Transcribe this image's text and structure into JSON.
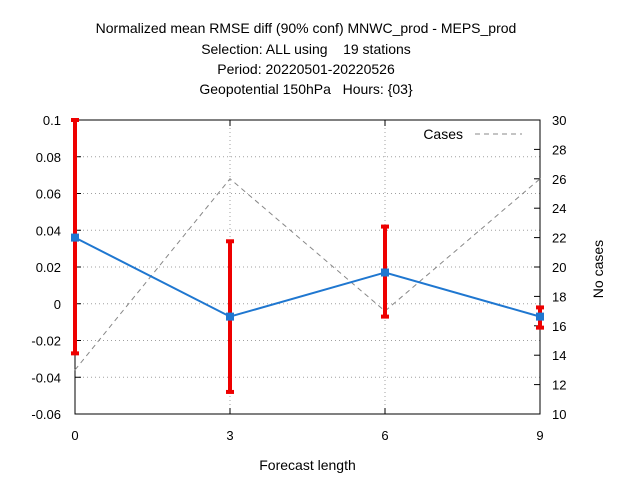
{
  "chart_data": {
    "type": "line",
    "title_lines": [
      "Normalized mean RMSE diff (90% conf) MNWC_prod - MEPS_prod",
      "Selection: ALL using    19 stations",
      "Period: 20220501-20220526",
      "Geopotential 150hPa   Hours: {03}"
    ],
    "xlabel": "Forecast length",
    "ylabel": "",
    "y2label": "No cases",
    "x": [
      0,
      3,
      6,
      9
    ],
    "xticks": [
      "0",
      "3",
      "6",
      "9"
    ],
    "xlim": [
      0,
      9
    ],
    "ylim": [
      -0.06,
      0.1
    ],
    "yticks": [
      "-0.06",
      "-0.04",
      "-0.02",
      "0",
      "0.02",
      "0.04",
      "0.06",
      "0.08",
      "0.1"
    ],
    "y2lim": [
      10,
      30
    ],
    "y2ticks": [
      "10",
      "12",
      "14",
      "16",
      "18",
      "20",
      "22",
      "24",
      "26",
      "28",
      "30"
    ],
    "grid": true,
    "legend_position": "top-right",
    "series": [
      {
        "values": [
          0.036,
          -0.007,
          0.017,
          -0.007
        ],
        "err_low": [
          -0.027,
          -0.048,
          -0.007,
          -0.013
        ],
        "err_high": [
          0.1,
          0.034,
          0.042,
          -0.002
        ],
        "color": "#1f77d0",
        "error_color": "#ee0000",
        "axis": "left"
      },
      {
        "name": "Cases",
        "values": [
          13,
          26,
          17,
          26
        ],
        "color": "#888888",
        "style": "dashed",
        "axis": "right"
      }
    ]
  }
}
